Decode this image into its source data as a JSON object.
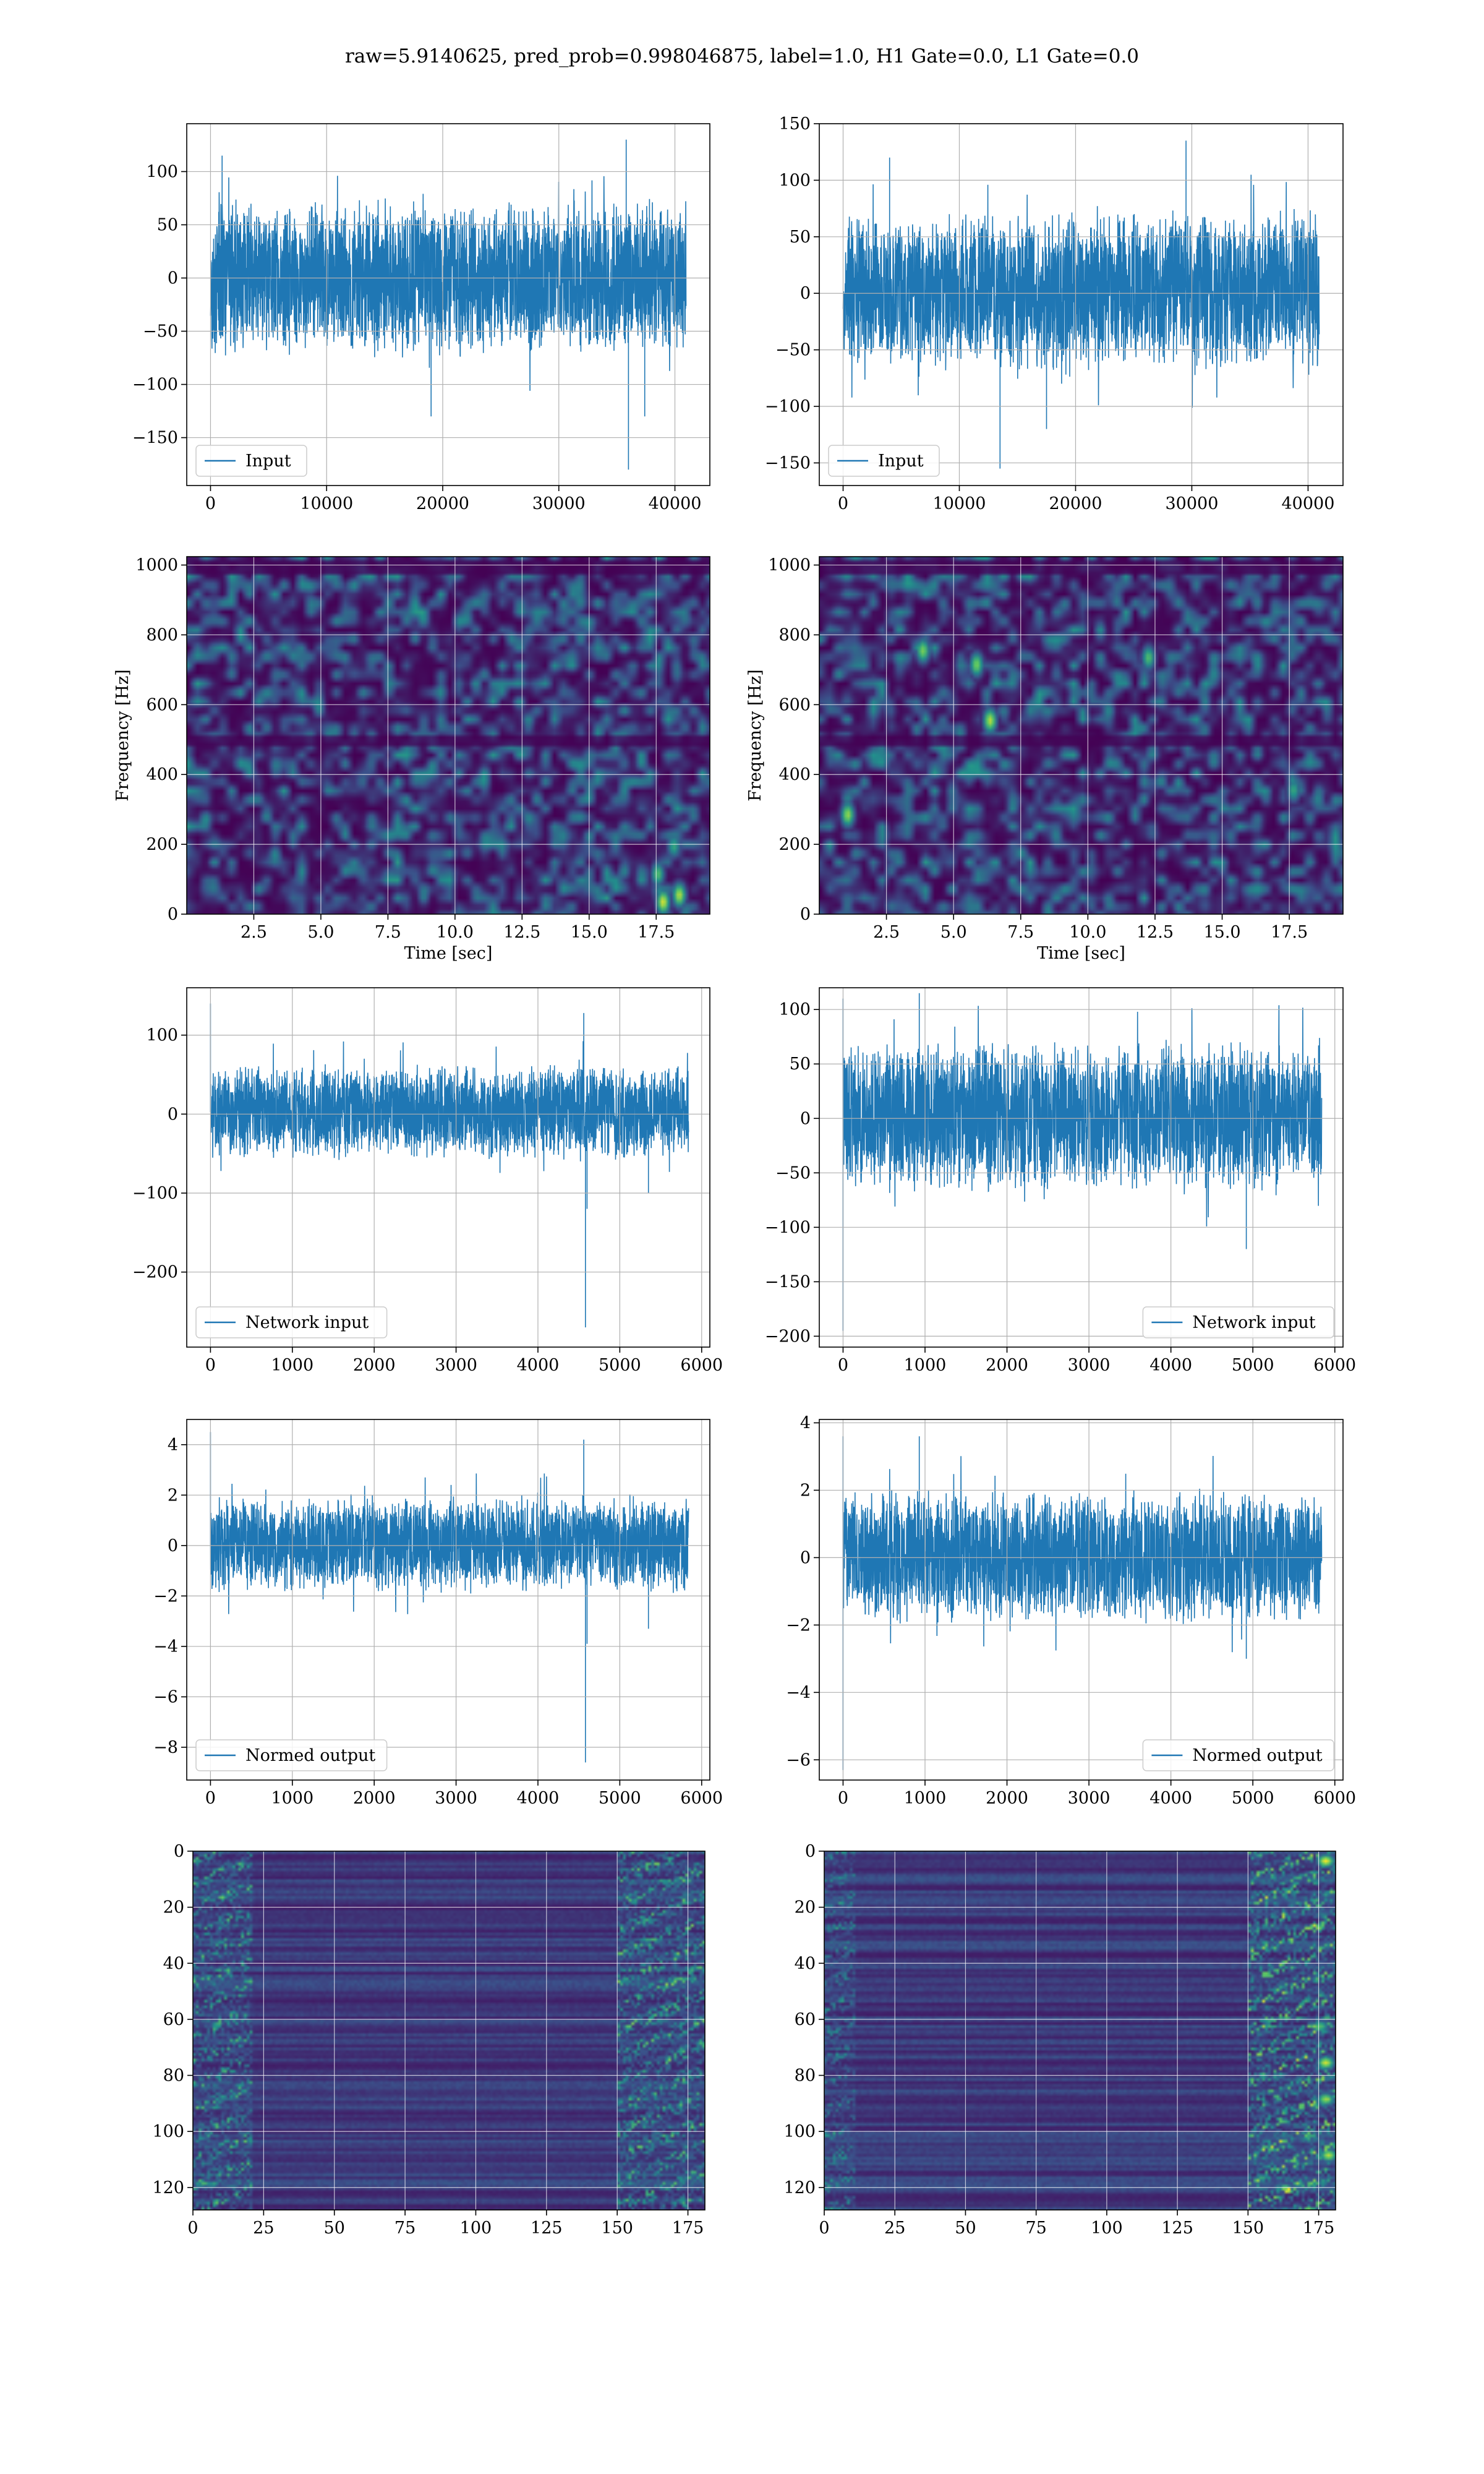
{
  "figure": {
    "title": "raw=5.9140625, pred_prob=0.998046875, label=1.0, H1 Gate=0.0, L1 Gate=0.0",
    "colors": {
      "line": "#1f77b4",
      "grid": "#b0b0b0",
      "viridis_low": "#440154",
      "viridis_mid": "#21918c",
      "viridis_high": "#fde725"
    }
  },
  "chart_data": [
    {
      "id": "input-h1",
      "type": "line",
      "legend": "Input",
      "legend_loc": "lower left",
      "grid": true,
      "xlim": [
        -2048,
        43008
      ],
      "ylim": [
        -195,
        145
      ],
      "xticks": [
        0,
        10000,
        20000,
        30000,
        40000
      ],
      "yticks": [
        -150,
        -100,
        -50,
        0,
        50,
        100
      ],
      "xticklabels": [
        "0",
        "10000",
        "20000",
        "30000",
        "40000"
      ],
      "yticklabels": [
        "−150",
        "−100",
        "−50",
        "0",
        "50",
        "100"
      ],
      "series": [
        {
          "x_range": [
            0,
            40960
          ],
          "typical_band": [
            -75,
            75
          ],
          "extremes": [
            [
              35800,
              130
            ],
            [
              36000,
              -180
            ],
            [
              37400,
              -130
            ],
            [
              1000,
              115
            ],
            [
              19000,
              -130
            ]
          ]
        }
      ]
    },
    {
      "id": "input-l1",
      "type": "line",
      "legend": "Input",
      "legend_loc": "lower left",
      "grid": true,
      "xlim": [
        -2048,
        43008
      ],
      "ylim": [
        -170,
        150
      ],
      "xticks": [
        0,
        10000,
        20000,
        30000,
        40000
      ],
      "yticks": [
        -150,
        -100,
        -50,
        0,
        50,
        100,
        150
      ],
      "xticklabels": [
        "0",
        "10000",
        "20000",
        "30000",
        "40000"
      ],
      "yticklabels": [
        "−150",
        "−100",
        "−50",
        "0",
        "50",
        "100",
        "150"
      ],
      "series": [
        {
          "x_range": [
            0,
            40960
          ],
          "typical_band": [
            -70,
            75
          ],
          "extremes": [
            [
              29500,
              135
            ],
            [
              13500,
              -155
            ],
            [
              17500,
              -120
            ],
            [
              4000,
              120
            ]
          ]
        }
      ]
    },
    {
      "id": "spec-h1",
      "type": "heatmap",
      "grid": true,
      "xlabel": "Time [sec]",
      "ylabel": "Frequency [Hz]",
      "xlim": [
        0,
        19.5
      ],
      "ylim": [
        0,
        1024
      ],
      "xticks": [
        2.5,
        5.0,
        7.5,
        10.0,
        12.5,
        15.0,
        17.5
      ],
      "yticks": [
        0,
        200,
        400,
        600,
        800,
        1000
      ],
      "xticklabels": [
        "2.5",
        "5.0",
        "7.5",
        "10.0",
        "12.5",
        "15.0",
        "17.5"
      ],
      "yticklabels": [
        "0",
        "200",
        "400",
        "600",
        "800",
        "1000"
      ],
      "features": {
        "hot_spots": [
          [
            17.7,
            40,
            0.95
          ],
          [
            18.3,
            60,
            0.9
          ],
          [
            17.5,
            120,
            0.7
          ],
          [
            18.1,
            200,
            0.6
          ]
        ],
        "dark_bands_hz": [
          500,
          1000
        ]
      }
    },
    {
      "id": "spec-l1",
      "type": "heatmap",
      "grid": true,
      "xlabel": "Time [sec]",
      "ylabel": "Frequency [Hz]",
      "xlim": [
        0,
        19.5
      ],
      "ylim": [
        0,
        1024
      ],
      "xticks": [
        2.5,
        5.0,
        7.5,
        10.0,
        12.5,
        15.0,
        17.5
      ],
      "yticks": [
        0,
        200,
        400,
        600,
        800,
        1000
      ],
      "xticklabels": [
        "2.5",
        "5.0",
        "7.5",
        "10.0",
        "12.5",
        "15.0",
        "17.5"
      ],
      "yticklabels": [
        "0",
        "200",
        "400",
        "600",
        "800",
        "1000"
      ],
      "features": {
        "hot_spots": [
          [
            6.3,
            560,
            0.9
          ],
          [
            3.8,
            760,
            0.8
          ],
          [
            5.8,
            720,
            0.8
          ],
          [
            1.0,
            290,
            0.85
          ],
          [
            12.2,
            740,
            0.7
          ],
          [
            17.6,
            360,
            0.6
          ]
        ],
        "dark_bands_hz": [
          500,
          1000
        ]
      }
    },
    {
      "id": "netin-h1",
      "type": "line",
      "legend": "Network input",
      "legend_loc": "lower left",
      "grid": true,
      "xlim": [
        -290,
        6100
      ],
      "ylim": [
        -295,
        160
      ],
      "xticks": [
        0,
        1000,
        2000,
        3000,
        4000,
        5000,
        6000
      ],
      "yticks": [
        -200,
        -100,
        0,
        100
      ],
      "xticklabels": [
        "0",
        "1000",
        "2000",
        "3000",
        "4000",
        "5000",
        "6000"
      ],
      "yticklabels": [
        "−200",
        "−100",
        "0",
        "100"
      ],
      "series": [
        {
          "x_range": [
            0,
            5840
          ],
          "typical_band": [
            -60,
            65
          ],
          "extremes": [
            [
              0,
              140
            ],
            [
              4560,
              128
            ],
            [
              4580,
              -270
            ],
            [
              4600,
              -120
            ],
            [
              5350,
              -100
            ]
          ]
        }
      ]
    },
    {
      "id": "netin-l1",
      "type": "line",
      "legend": "Network input",
      "legend_loc": "lower right",
      "grid": true,
      "xlim": [
        -290,
        6100
      ],
      "ylim": [
        -210,
        120
      ],
      "xticks": [
        0,
        1000,
        2000,
        3000,
        4000,
        5000,
        6000
      ],
      "yticks": [
        -200,
        -150,
        -100,
        -50,
        0,
        50,
        100
      ],
      "xticklabels": [
        "0",
        "1000",
        "2000",
        "3000",
        "4000",
        "5000",
        "6000"
      ],
      "yticklabels": [
        "−200",
        "−150",
        "−100",
        "−50",
        "0",
        "50",
        "100"
      ],
      "series": [
        {
          "x_range": [
            0,
            5840
          ],
          "typical_band": [
            -70,
            75
          ],
          "extremes": [
            [
              0,
              110
            ],
            [
              0,
              -195
            ],
            [
              930,
              115
            ],
            [
              4920,
              -120
            ]
          ]
        }
      ]
    },
    {
      "id": "normed-h1",
      "type": "line",
      "legend": "Normed output",
      "legend_loc": "lower left",
      "grid": true,
      "xlim": [
        -290,
        6100
      ],
      "ylim": [
        -9.3,
        5.0
      ],
      "xticks": [
        0,
        1000,
        2000,
        3000,
        4000,
        5000,
        6000
      ],
      "yticks": [
        -8,
        -6,
        -4,
        -2,
        0,
        2,
        4
      ],
      "xticklabels": [
        "0",
        "1000",
        "2000",
        "3000",
        "4000",
        "5000",
        "6000"
      ],
      "yticklabels": [
        "−8",
        "−6",
        "−4",
        "−2",
        "0",
        "2",
        "4"
      ],
      "series": [
        {
          "x_range": [
            0,
            5840
          ],
          "typical_band": [
            -1.9,
            2.0
          ],
          "extremes": [
            [
              0,
              4.5
            ],
            [
              4560,
              4.2
            ],
            [
              4580,
              -8.6
            ],
            [
              4600,
              -3.9
            ],
            [
              5350,
              -3.3
            ]
          ]
        }
      ]
    },
    {
      "id": "normed-l1",
      "type": "line",
      "legend": "Normed output",
      "legend_loc": "lower right",
      "grid": true,
      "xlim": [
        -290,
        6100
      ],
      "ylim": [
        -6.6,
        4.1
      ],
      "xticks": [
        0,
        1000,
        2000,
        3000,
        4000,
        5000,
        6000
      ],
      "yticks": [
        -6,
        -4,
        -2,
        0,
        2,
        4
      ],
      "xticklabels": [
        "0",
        "1000",
        "2000",
        "3000",
        "4000",
        "5000",
        "6000"
      ],
      "yticklabels": [
        "−6",
        "−4",
        "−2",
        "0",
        "2",
        "4"
      ],
      "series": [
        {
          "x_range": [
            0,
            5840
          ],
          "typical_band": [
            -2.0,
            2.1
          ],
          "extremes": [
            [
              0,
              3.6
            ],
            [
              0,
              -6.3
            ],
            [
              930,
              3.6
            ],
            [
              4920,
              -3.0
            ]
          ]
        }
      ]
    },
    {
      "id": "feat-h1",
      "type": "heatmap",
      "grid": true,
      "y_inverted": true,
      "xlim": [
        0,
        181
      ],
      "ylim": [
        128,
        0
      ],
      "xticks": [
        0,
        25,
        50,
        75,
        100,
        125,
        150,
        175
      ],
      "yticks": [
        0,
        20,
        40,
        60,
        80,
        100,
        120
      ],
      "xticklabels": [
        "0",
        "25",
        "50",
        "75",
        "100",
        "125",
        "150",
        "175"
      ],
      "yticklabels": [
        "0",
        "20",
        "40",
        "60",
        "80",
        "100",
        "120"
      ],
      "features": {
        "bright_columns": [
          [
            0,
            20,
            0.55
          ],
          [
            150,
            181,
            0.6
          ]
        ]
      }
    },
    {
      "id": "feat-l1",
      "type": "heatmap",
      "grid": true,
      "y_inverted": true,
      "xlim": [
        0,
        181
      ],
      "ylim": [
        128,
        0
      ],
      "xticks": [
        0,
        25,
        50,
        75,
        100,
        125,
        150,
        175
      ],
      "yticks": [
        0,
        20,
        40,
        60,
        80,
        100,
        120
      ],
      "xticklabels": [
        "0",
        "25",
        "50",
        "75",
        "100",
        "125",
        "150",
        "175"
      ],
      "yticklabels": [
        "0",
        "20",
        "40",
        "60",
        "80",
        "100",
        "120"
      ],
      "features": {
        "bright_columns": [
          [
            0,
            10,
            0.35
          ],
          [
            150,
            181,
            0.75
          ]
        ],
        "hot_spots": [
          [
            177,
            3,
            1.0
          ],
          [
            177,
            75,
            0.95
          ],
          [
            177,
            88,
            0.85
          ],
          [
            178,
            108,
            0.9
          ],
          [
            175,
            62,
            0.7
          ]
        ]
      }
    }
  ]
}
